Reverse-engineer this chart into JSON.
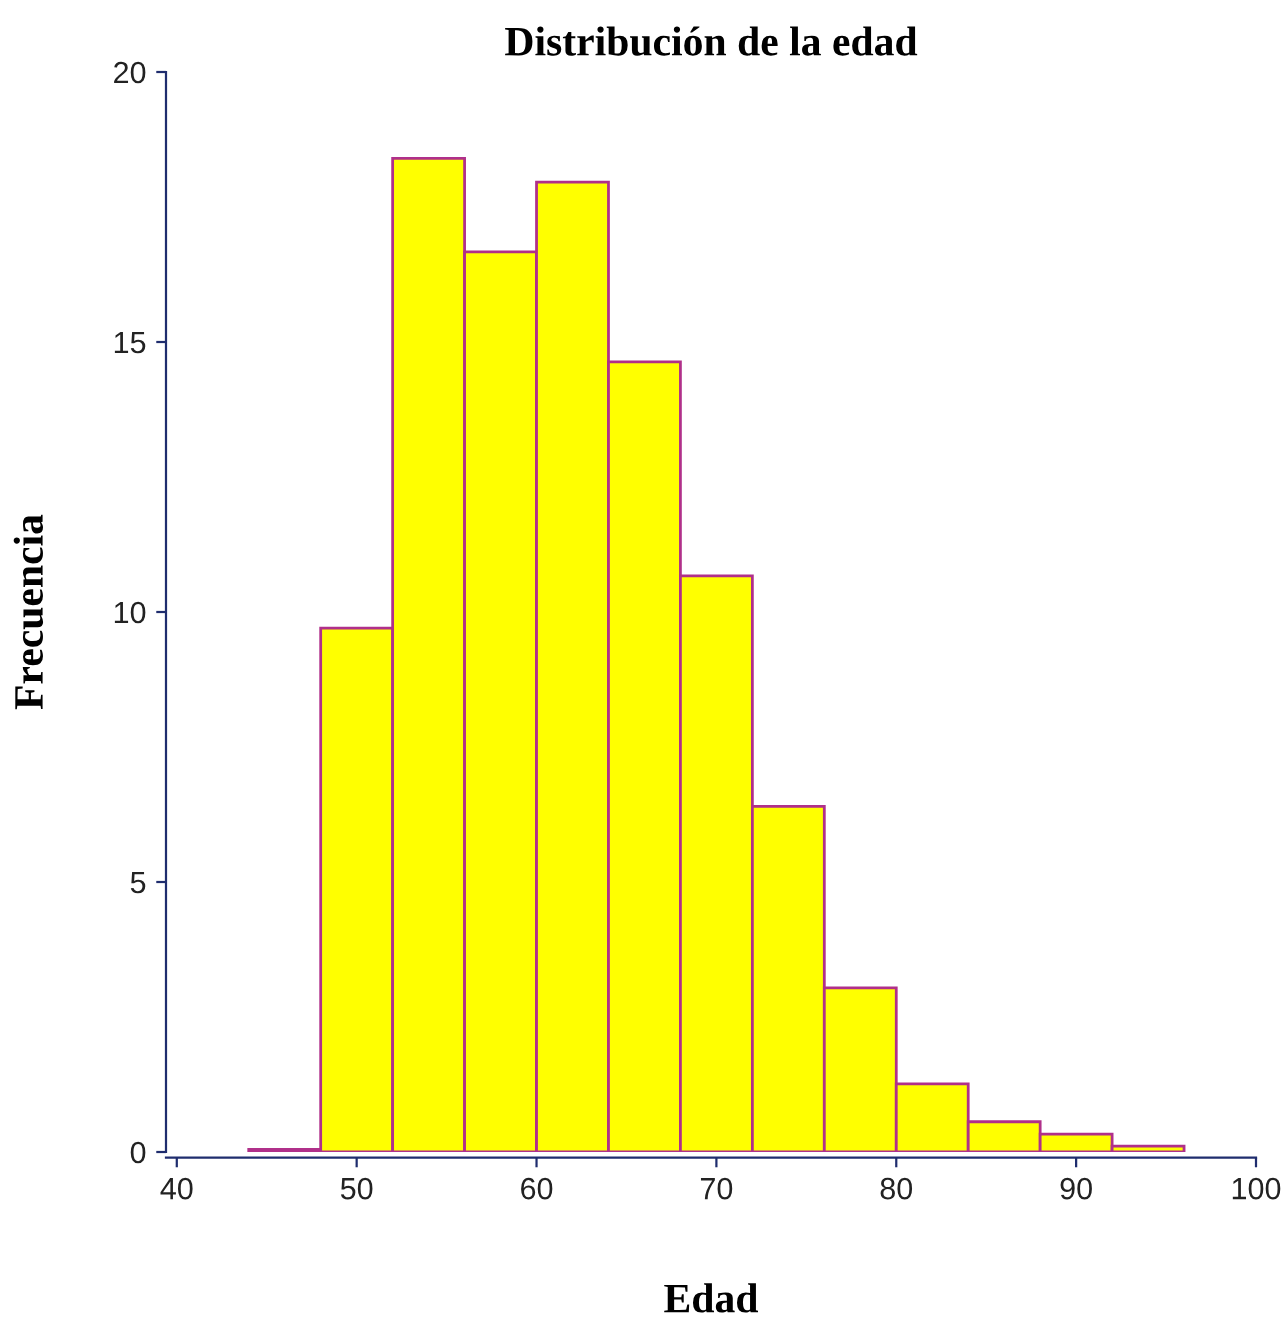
{
  "chart_data": {
    "type": "histogram",
    "title": "Distribución de la edad",
    "xlabel": "Edad",
    "ylabel": "Frecuencia",
    "bins": [
      44,
      48,
      52,
      56,
      60,
      64,
      68,
      72,
      76,
      80,
      84,
      88,
      92,
      96
    ],
    "values": [
      0.05,
      9.7,
      18.4,
      16.67,
      17.96,
      14.63,
      10.67,
      6.4,
      3.04,
      1.26,
      0.56,
      0.33,
      0.11
    ],
    "color": "#ffff00",
    "xlim": [
      39.4,
      100
    ],
    "xticks": [
      40,
      50,
      60,
      70,
      80,
      90,
      100
    ],
    "ylim": [
      0,
      20
    ],
    "yticks": [
      0,
      5,
      10,
      15,
      20
    ],
    "grid": false,
    "legend": false
  }
}
